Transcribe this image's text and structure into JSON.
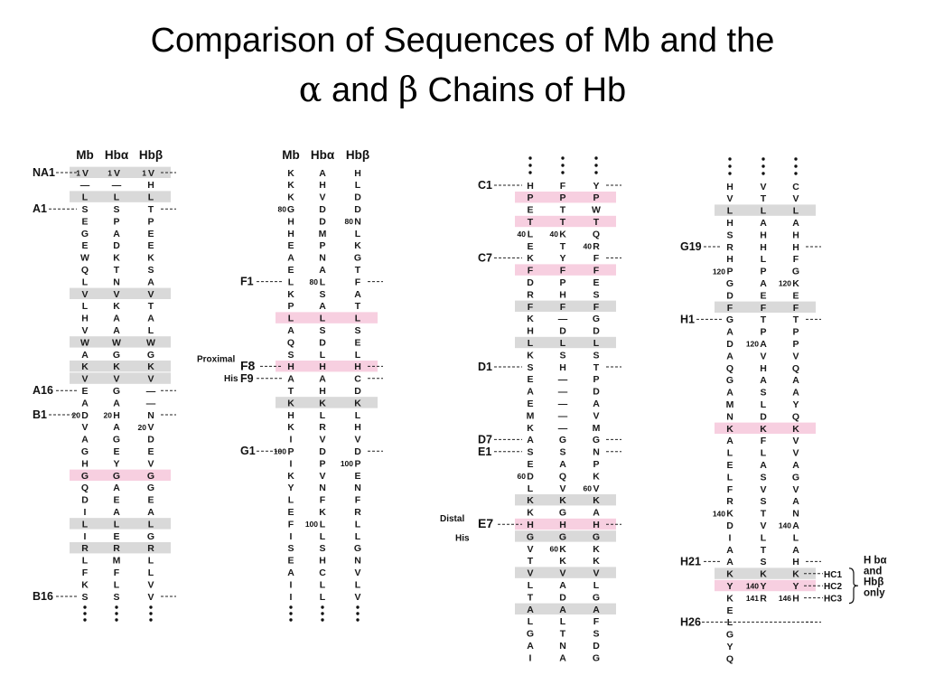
{
  "title": {
    "line1": "Comparison of Sequences of Mb and the",
    "line2_a": "α",
    "line2_b": " and ",
    "line2_c": "β",
    "line2_d": " Chains of Hb"
  },
  "headers": {
    "mb": "Mb",
    "hba": "Hbα",
    "hbb": "Hbβ"
  },
  "colors": {
    "gray": "#d9d9d9",
    "pink": "#f7cfe0"
  },
  "blocks": [
    {
      "x": [
        94,
        129,
        167
      ],
      "y0": 191,
      "dy": 13.4,
      "header_y": 176,
      "show_header": true,
      "dots_top": false,
      "dots_bottom": true,
      "rows": [
        [
          "1V",
          "1V",
          "1V",
          "g"
        ],
        [
          "—",
          "—",
          "H",
          ""
        ],
        [
          "L",
          "L",
          "L",
          "g"
        ],
        [
          "S",
          "S",
          "T",
          ""
        ],
        [
          "E",
          "P",
          "P",
          ""
        ],
        [
          "G",
          "A",
          "E",
          ""
        ],
        [
          "E",
          "D",
          "E",
          ""
        ],
        [
          "W",
          "K",
          "K",
          ""
        ],
        [
          "Q",
          "T",
          "S",
          ""
        ],
        [
          "L",
          "N",
          "A",
          ""
        ],
        [
          "V",
          "V",
          "V",
          "g"
        ],
        [
          "L",
          "K",
          "T",
          ""
        ],
        [
          "H",
          "A",
          "A",
          ""
        ],
        [
          "V",
          "A",
          "L",
          ""
        ],
        [
          "W",
          "W",
          "W",
          "g"
        ],
        [
          "A",
          "G",
          "G",
          ""
        ],
        [
          "K",
          "K",
          "K",
          "g"
        ],
        [
          "V",
          "V",
          "V",
          "g"
        ],
        [
          "E",
          "G",
          "—",
          ""
        ],
        [
          "A",
          "A",
          "—",
          ""
        ],
        [
          "D",
          "H",
          "N",
          ""
        ],
        [
          "V",
          "A",
          "V",
          ""
        ],
        [
          "A",
          "G",
          "D",
          ""
        ],
        [
          "G",
          "E",
          "E",
          ""
        ],
        [
          "H",
          "Y",
          "V",
          ""
        ],
        [
          "G",
          "G",
          "G",
          "p"
        ],
        [
          "Q",
          "A",
          "G",
          ""
        ],
        [
          "D",
          "E",
          "E",
          ""
        ],
        [
          "I",
          "A",
          "A",
          ""
        ],
        [
          "L",
          "L",
          "L",
          "g"
        ],
        [
          "I",
          "E",
          "G",
          ""
        ],
        [
          "R",
          "R",
          "R",
          "g"
        ],
        [
          "L",
          "M",
          "L",
          ""
        ],
        [
          "F",
          "F",
          "L",
          ""
        ],
        [
          "K",
          "L",
          "V",
          ""
        ],
        [
          "S",
          "S",
          "V",
          ""
        ]
      ]
    },
    {
      "x": [
        322,
        357,
        396
      ],
      "y0": 191,
      "dy": 13.4,
      "header_y": 176,
      "show_header": true,
      "dots_top": false,
      "dots_bottom": true,
      "rows": [
        [
          "K",
          "A",
          "H",
          ""
        ],
        [
          "K",
          "H",
          "L",
          ""
        ],
        [
          "K",
          "V",
          "D",
          ""
        ],
        [
          "G",
          "D",
          "D",
          ""
        ],
        [
          "H",
          "D",
          "N",
          ""
        ],
        [
          "H",
          "M",
          "L",
          ""
        ],
        [
          "E",
          "P",
          "K",
          ""
        ],
        [
          "A",
          "N",
          "G",
          ""
        ],
        [
          "E",
          "A",
          "T",
          ""
        ],
        [
          "L",
          "L",
          "F",
          ""
        ],
        [
          "K",
          "S",
          "A",
          ""
        ],
        [
          "P",
          "A",
          "T",
          ""
        ],
        [
          "L",
          "L",
          "L",
          "p"
        ],
        [
          "A",
          "S",
          "S",
          ""
        ],
        [
          "Q",
          "D",
          "E",
          ""
        ],
        [
          "S",
          "L",
          "L",
          ""
        ],
        [
          "H",
          "H",
          "H",
          "p"
        ],
        [
          "A",
          "A",
          "C",
          ""
        ],
        [
          "T",
          "H",
          "D",
          ""
        ],
        [
          "K",
          "K",
          "K",
          "g"
        ],
        [
          "H",
          "L",
          "L",
          ""
        ],
        [
          "K",
          "R",
          "H",
          ""
        ],
        [
          "I",
          "V",
          "V",
          ""
        ],
        [
          "P",
          "D",
          "D",
          ""
        ],
        [
          "I",
          "P",
          "P",
          ""
        ],
        [
          "K",
          "V",
          "E",
          ""
        ],
        [
          "Y",
          "N",
          "N",
          ""
        ],
        [
          "L",
          "F",
          "F",
          ""
        ],
        [
          "E",
          "K",
          "R",
          ""
        ],
        [
          "F",
          "L",
          "L",
          ""
        ],
        [
          "I",
          "L",
          "L",
          ""
        ],
        [
          "S",
          "S",
          "G",
          ""
        ],
        [
          "E",
          "H",
          "N",
          ""
        ],
        [
          "A",
          "C",
          "V",
          ""
        ],
        [
          "I",
          "L",
          "L",
          ""
        ],
        [
          "I",
          "L",
          "V",
          ""
        ]
      ]
    },
    {
      "x": [
        587,
        623,
        660
      ],
      "y0": 205,
      "dy": 13.4,
      "header_y": 0,
      "show_header": false,
      "dots_top": true,
      "dots_bottom": false,
      "rows": [
        [
          "H",
          "F",
          "Y",
          ""
        ],
        [
          "P",
          "P",
          "P",
          "p"
        ],
        [
          "E",
          "T",
          "W",
          ""
        ],
        [
          "T",
          "T",
          "T",
          "p"
        ],
        [
          "L",
          "K",
          "Q",
          ""
        ],
        [
          "E",
          "T",
          "R",
          ""
        ],
        [
          "K",
          "Y",
          "F",
          ""
        ],
        [
          "F",
          "F",
          "F",
          "p"
        ],
        [
          "D",
          "P",
          "E",
          ""
        ],
        [
          "R",
          "H",
          "S",
          ""
        ],
        [
          "F",
          "F",
          "F",
          "g"
        ],
        [
          "K",
          "—",
          "G",
          ""
        ],
        [
          "H",
          "D",
          "D",
          ""
        ],
        [
          "L",
          "L",
          "L",
          "g"
        ],
        [
          "K",
          "S",
          "S",
          ""
        ],
        [
          "S",
          "H",
          "T",
          ""
        ],
        [
          "E",
          "—",
          "P",
          ""
        ],
        [
          "A",
          "—",
          "D",
          ""
        ],
        [
          "E",
          "—",
          "A",
          ""
        ],
        [
          "M",
          "—",
          "V",
          ""
        ],
        [
          "K",
          "—",
          "M",
          ""
        ],
        [
          "A",
          "G",
          "G",
          ""
        ],
        [
          "S",
          "S",
          "N",
          ""
        ],
        [
          "E",
          "A",
          "P",
          ""
        ],
        [
          "D",
          "Q",
          "K",
          ""
        ],
        [
          "L",
          "V",
          "V",
          ""
        ],
        [
          "K",
          "K",
          "K",
          "g"
        ],
        [
          "K",
          "G",
          "A",
          ""
        ],
        [
          "H",
          "H",
          "H",
          "p"
        ],
        [
          "G",
          "G",
          "G",
          "g"
        ],
        [
          "V",
          "K",
          "K",
          ""
        ],
        [
          "T",
          "K",
          "K",
          ""
        ],
        [
          "V",
          "V",
          "V",
          "g"
        ],
        [
          "L",
          "A",
          "L",
          ""
        ],
        [
          "T",
          "D",
          "G",
          ""
        ],
        [
          "A",
          "A",
          "A",
          "g"
        ],
        [
          "L",
          "L",
          "F",
          ""
        ],
        [
          "G",
          "T",
          "S",
          ""
        ],
        [
          "A",
          "N",
          "D",
          ""
        ],
        [
          "I",
          "A",
          "G",
          ""
        ]
      ]
    },
    {
      "x": [
        808,
        845,
        881
      ],
      "y0": 206,
      "dy": 13.4,
      "header_y": 0,
      "show_header": false,
      "dots_top": true,
      "dots_bottom": false,
      "rows": [
        [
          "H",
          "V",
          "C",
          ""
        ],
        [
          "V",
          "T",
          "V",
          ""
        ],
        [
          "L",
          "L",
          "L",
          "g"
        ],
        [
          "H",
          "A",
          "A",
          ""
        ],
        [
          "S",
          "H",
          "H",
          ""
        ],
        [
          "R",
          "H",
          "H",
          ""
        ],
        [
          "H",
          "L",
          "F",
          ""
        ],
        [
          "P",
          "P",
          "G",
          ""
        ],
        [
          "G",
          "A",
          "K",
          ""
        ],
        [
          "D",
          "E",
          "E",
          ""
        ],
        [
          "F",
          "F",
          "F",
          "g"
        ],
        [
          "G",
          "T",
          "T",
          ""
        ],
        [
          "A",
          "P",
          "P",
          ""
        ],
        [
          "D",
          "A",
          "P",
          ""
        ],
        [
          "A",
          "V",
          "V",
          ""
        ],
        [
          "Q",
          "H",
          "Q",
          ""
        ],
        [
          "G",
          "A",
          "A",
          ""
        ],
        [
          "A",
          "S",
          "A",
          ""
        ],
        [
          "M",
          "L",
          "Y",
          ""
        ],
        [
          "N",
          "D",
          "Q",
          ""
        ],
        [
          "K",
          "K",
          "K",
          "p"
        ],
        [
          "A",
          "F",
          "V",
          ""
        ],
        [
          "L",
          "L",
          "V",
          ""
        ],
        [
          "E",
          "A",
          "A",
          ""
        ],
        [
          "L",
          "S",
          "G",
          ""
        ],
        [
          "F",
          "V",
          "V",
          ""
        ],
        [
          "R",
          "S",
          "A",
          ""
        ],
        [
          "K",
          "T",
          "N",
          ""
        ],
        [
          "D",
          "V",
          "A",
          ""
        ],
        [
          "I",
          "L",
          "L",
          ""
        ],
        [
          "A",
          "T",
          "A",
          ""
        ],
        [
          "A",
          "S",
          "H",
          ""
        ],
        [
          "K",
          "K",
          "K",
          "g"
        ],
        [
          "Y",
          "Y",
          "Y",
          "p"
        ],
        [
          "K",
          "R",
          "H",
          ""
        ],
        [
          "E",
          "",
          "",
          " "
        ],
        [
          "L",
          "",
          "",
          " "
        ],
        [
          "G",
          "",
          "",
          " "
        ],
        [
          "Y",
          "",
          "",
          " "
        ],
        [
          "Q",
          "",
          "",
          " "
        ]
      ]
    }
  ],
  "row_numbers": [
    {
      "block": 1,
      "row": 3,
      "col": 0,
      "text": "80"
    },
    {
      "block": 1,
      "row": 4,
      "col": 2,
      "text": "80"
    },
    {
      "block": 1,
      "row": 9,
      "col": 1,
      "text": "80"
    },
    {
      "block": 1,
      "row": 23,
      "col": 0,
      "text": "100"
    },
    {
      "block": 1,
      "row": 24,
      "col": 2,
      "text": "100"
    },
    {
      "block": 1,
      "row": 29,
      "col": 1,
      "text": "100"
    },
    {
      "block": 0,
      "row": 20,
      "col": 0,
      "text": "20"
    },
    {
      "block": 0,
      "row": 20,
      "col": 1,
      "text": "20"
    },
    {
      "block": 0,
      "row": 21,
      "col": 2,
      "text": "20"
    },
    {
      "block": 2,
      "row": 4,
      "col": 0,
      "text": "40"
    },
    {
      "block": 2,
      "row": 4,
      "col": 1,
      "text": "40"
    },
    {
      "block": 2,
      "row": 5,
      "col": 2,
      "text": "40"
    },
    {
      "block": 2,
      "row": 24,
      "col": 0,
      "text": "60"
    },
    {
      "block": 2,
      "row": 25,
      "col": 2,
      "text": "60"
    },
    {
      "block": 2,
      "row": 30,
      "col": 1,
      "text": "60"
    },
    {
      "block": 3,
      "row": 7,
      "col": 0,
      "text": "120"
    },
    {
      "block": 3,
      "row": 8,
      "col": 2,
      "text": "120"
    },
    {
      "block": 3,
      "row": 13,
      "col": 1,
      "text": "120"
    },
    {
      "block": 3,
      "row": 27,
      "col": 0,
      "text": "140"
    },
    {
      "block": 3,
      "row": 28,
      "col": 2,
      "text": "140"
    },
    {
      "block": 3,
      "row": 33,
      "col": 1,
      "text": "140"
    },
    {
      "block": 3,
      "row": 34,
      "col": 1,
      "text": "141"
    },
    {
      "block": 3,
      "row": 34,
      "col": 2,
      "text": "146"
    }
  ],
  "helix_labels": [
    {
      "block": 0,
      "row": 0,
      "text": "NA1"
    },
    {
      "block": 0,
      "row": 3,
      "text": "A1"
    },
    {
      "block": 0,
      "row": 18,
      "text": "A16"
    },
    {
      "block": 0,
      "row": 20,
      "text": "B1"
    },
    {
      "block": 0,
      "row": 35,
      "text": "B16"
    },
    {
      "block": 1,
      "row": 9,
      "text": "F1"
    },
    {
      "block": 1,
      "row": 16,
      "text": "F8"
    },
    {
      "block": 1,
      "row": 17,
      "text": "F9"
    },
    {
      "block": 1,
      "row": 23,
      "text": "G1"
    },
    {
      "block": 2,
      "row": 0,
      "text": "C1"
    },
    {
      "block": 2,
      "row": 6,
      "text": "C7"
    },
    {
      "block": 2,
      "row": 15,
      "text": "D1"
    },
    {
      "block": 2,
      "row": 21,
      "text": "D7"
    },
    {
      "block": 2,
      "row": 22,
      "text": "E1"
    },
    {
      "block": 2,
      "row": 28,
      "text": "E7"
    },
    {
      "block": 3,
      "row": 5,
      "text": "G19"
    },
    {
      "block": 3,
      "row": 11,
      "text": "H1"
    },
    {
      "block": 3,
      "row": 31,
      "text": "H21"
    },
    {
      "block": 3,
      "row": 36,
      "text": "H26"
    }
  ],
  "side_notes": {
    "proximal": "Proximal",
    "proximal_his": "His",
    "distal": "Distal",
    "distal_his": "His",
    "hc1": "HC1",
    "hc2": "HC2",
    "hc3": "HC3",
    "hb_note_1": "H bα",
    "hb_note_2": "and",
    "hb_note_3": "Hbβ",
    "hb_note_4": "only"
  }
}
